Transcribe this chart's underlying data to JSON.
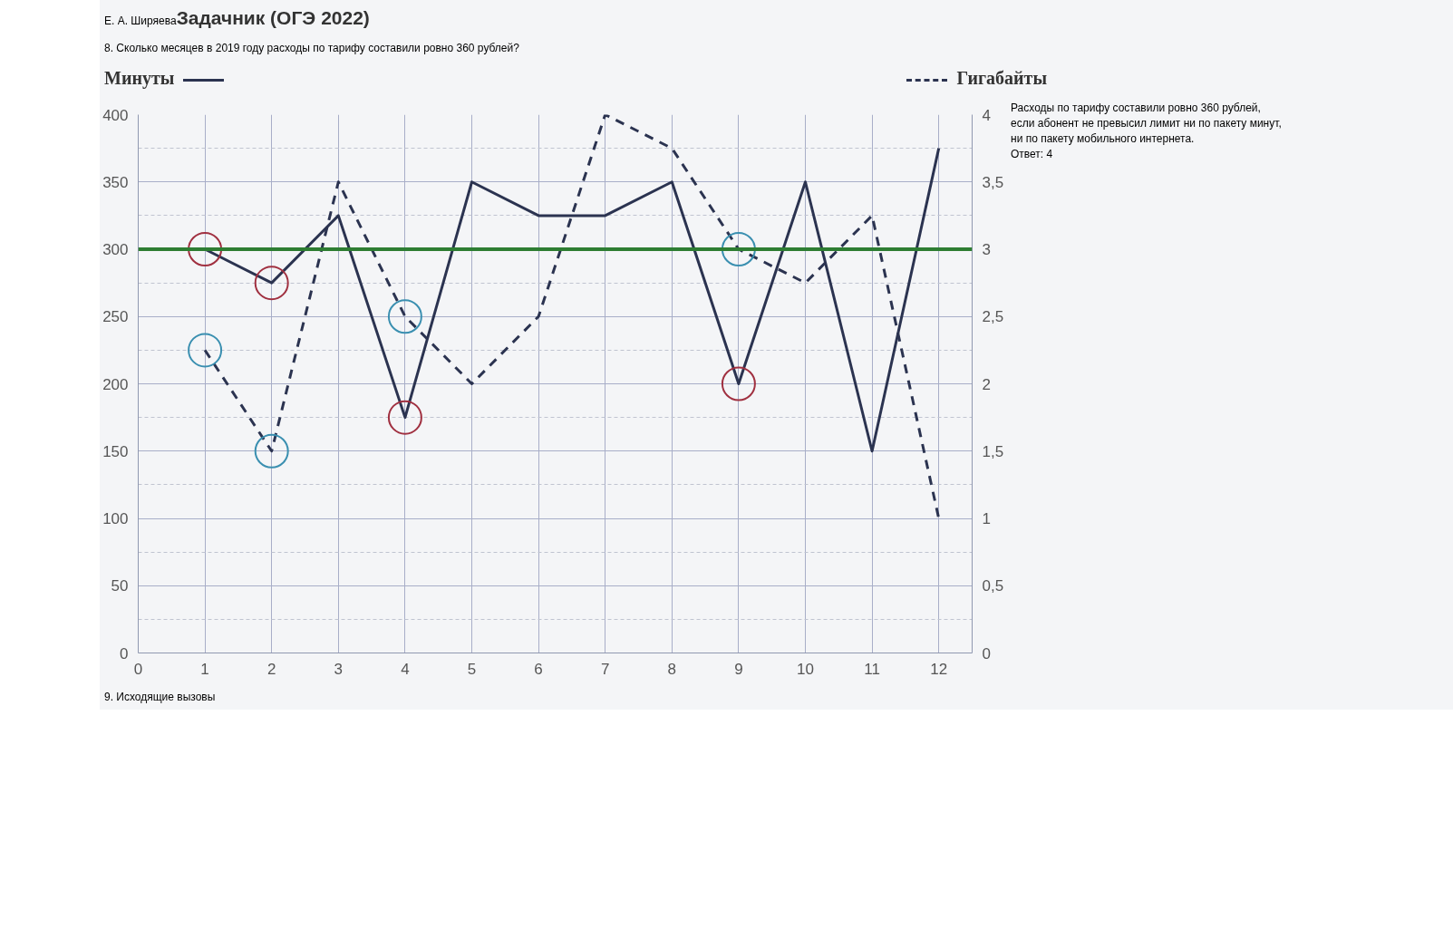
{
  "chart_data": {
    "type": "line",
    "title": "8. Сколько месяцев в 2019 году расходы по тарифу составили ровно 360 рублей?",
    "ylabel": "Минуты",
    "y2label": "Гигабайты",
    "x": [
      1,
      2,
      3,
      4,
      5,
      6,
      7,
      8,
      9,
      10,
      11,
      12
    ],
    "series": [
      {
        "color": "#2b3350",
        "line_style": "solid",
        "values": [
          300,
          275,
          325,
          175,
          350,
          325,
          325,
          350,
          200,
          350,
          150,
          375
        ]
      },
      {
        "color": "#2b3350",
        "line_style": "dashed",
        "axis": "y2",
        "values": [
          2.25,
          1.5,
          3.5,
          2.5,
          2.0,
          2.5,
          4.0,
          3.75,
          3.0,
          2.75,
          3.25,
          1.0
        ]
      },
      {
        "type": "scatter",
        "marker": "circle",
        "color": "#a03040",
        "x": [
          1,
          2,
          4,
          9
        ],
        "values": [
          300,
          275,
          175,
          200
        ]
      },
      {
        "type": "scatter",
        "marker": "circle",
        "color": "#3a8fb0",
        "axis": "y2",
        "x": [
          1,
          2,
          4,
          9
        ],
        "values": [
          2.25,
          1.5,
          2.5,
          3.0
        ]
      }
    ],
    "xlim": [
      0,
      12.5
    ],
    "xticks": [
      0,
      1,
      2,
      3,
      4,
      5,
      6,
      7,
      8,
      9,
      10,
      11,
      12
    ],
    "ylim": [
      0,
      400
    ],
    "yticks": [
      0,
      50,
      100,
      150,
      200,
      250,
      300,
      350,
      400
    ],
    "y2lim": [
      0,
      4
    ],
    "y2ticks": [
      0,
      {
        "value": 0.5,
        "label": "0,5"
      },
      1,
      {
        "value": 1.5,
        "label": "1,5"
      },
      2,
      {
        "value": 2.5,
        "label": "2,5"
      },
      3,
      {
        "value": 3.5,
        "label": "3,5"
      },
      4
    ],
    "ref_lines": [
      {
        "axis": "y",
        "value": 300,
        "color": "#2e7d32"
      }
    ],
    "grid": true,
    "annotations": [
      "Е. А. Ширяева",
      "Задачник (ОГЭ 2022)",
      "Расходы по тарифу составили ровно 360 рублей, если абонент не превысил лимит ни по пакету минут, ни по пакету мобильного интернета.",
      "Ответ: 4",
      "9. Исходящие вызовы"
    ]
  }
}
